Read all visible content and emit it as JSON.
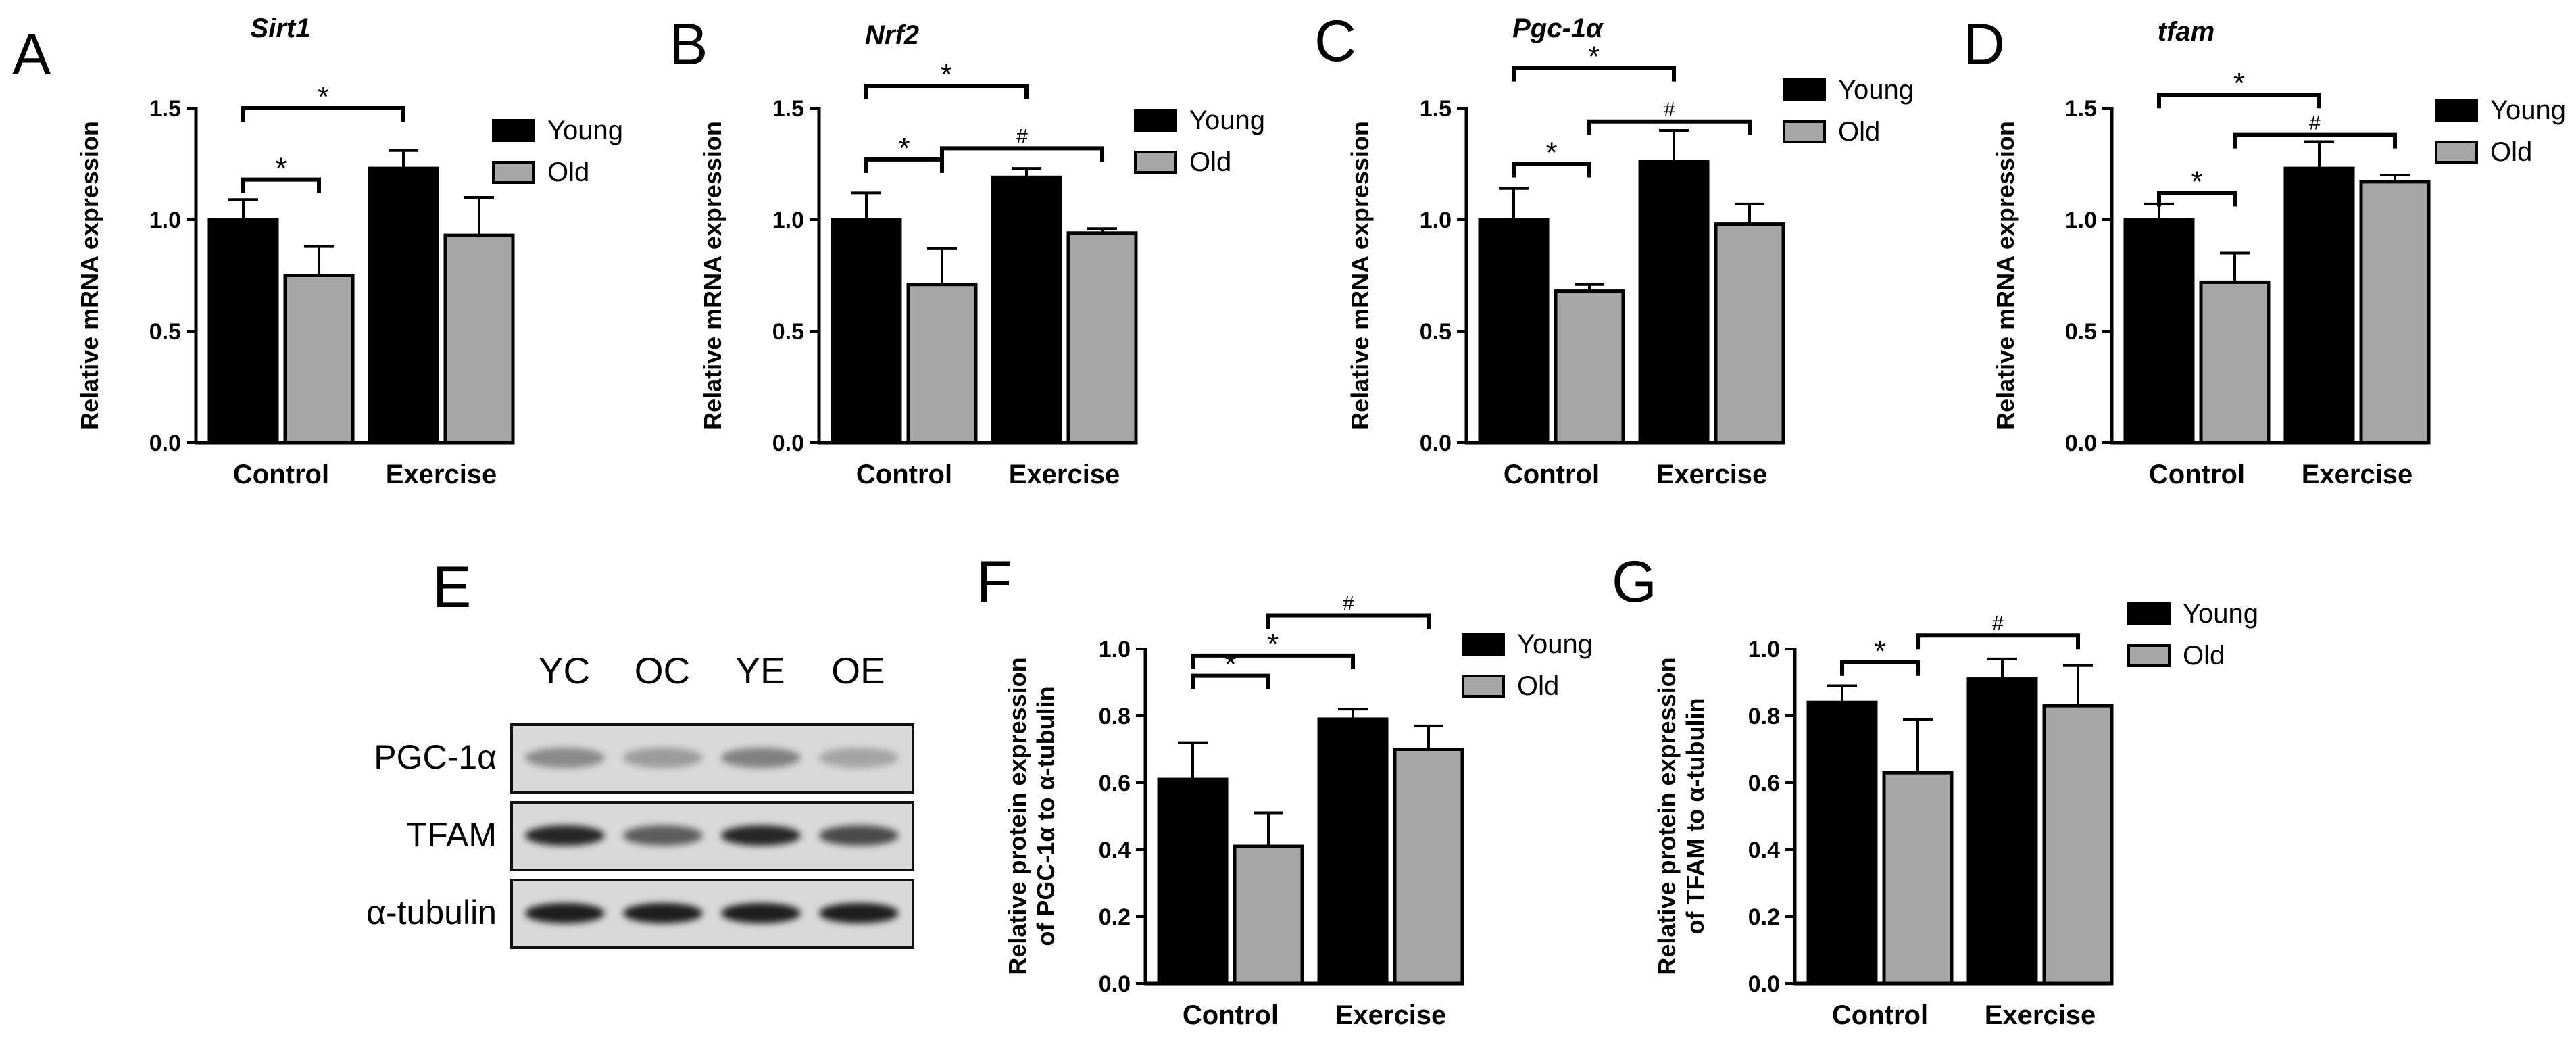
{
  "colors": {
    "young": "#000000",
    "old": "#a6a6a6",
    "axis": "#000000"
  },
  "western_blot": {
    "panel_letter": "E",
    "lanes": [
      "YC",
      "OC",
      "YE",
      "OE"
    ],
    "rows": [
      {
        "label": "PGC-1α",
        "band_intensity": [
          0.35,
          0.25,
          0.4,
          0.2
        ]
      },
      {
        "label": "TFAM",
        "band_intensity": [
          0.9,
          0.6,
          0.9,
          0.7
        ]
      },
      {
        "label": "α-tubulin",
        "band_intensity": [
          0.95,
          0.95,
          0.95,
          0.95
        ]
      }
    ]
  },
  "chart_data": [
    {
      "panel_letter": "A",
      "type": "bar",
      "title": "Sirt1",
      "title_italic": true,
      "ylabel": [
        "Relative mRNA expression"
      ],
      "ylim": [
        0,
        1.5
      ],
      "yticks": [
        "0.0",
        "0.5",
        "1.0",
        "1.5"
      ],
      "categories": [
        "Control",
        "Exercise"
      ],
      "series": [
        {
          "name": "Young",
          "values": [
            1.0,
            1.23
          ],
          "errors": [
            0.09,
            0.08
          ]
        },
        {
          "name": "Old",
          "values": [
            0.75,
            0.93
          ],
          "errors": [
            0.13,
            0.17
          ]
        }
      ],
      "legend_position": "top-right",
      "annotations": [
        {
          "label": "*",
          "from": [
            0,
            0
          ],
          "to": [
            0,
            1
          ],
          "y": 1.18
        },
        {
          "label": "*",
          "from": [
            0,
            0
          ],
          "to": [
            1,
            0
          ],
          "y": 1.5
        }
      ]
    },
    {
      "panel_letter": "B",
      "type": "bar",
      "title": "Nrf2",
      "title_italic": true,
      "ylabel": [
        "Relative mRNA expression"
      ],
      "ylim": [
        0,
        1.5
      ],
      "yticks": [
        "0.0",
        "0.5",
        "1.0",
        "1.5"
      ],
      "categories": [
        "Control",
        "Exercise"
      ],
      "series": [
        {
          "name": "Young",
          "values": [
            1.0,
            1.19
          ],
          "errors": [
            0.12,
            0.04
          ]
        },
        {
          "name": "Old",
          "values": [
            0.71,
            0.94
          ],
          "errors": [
            0.16,
            0.02
          ]
        }
      ],
      "legend_position": "top-right",
      "annotations": [
        {
          "label": "*",
          "from": [
            0,
            0
          ],
          "to": [
            0,
            1
          ],
          "y": 1.27
        },
        {
          "label": "*",
          "from": [
            0,
            0
          ],
          "to": [
            1,
            0
          ],
          "y": 1.6
        },
        {
          "label": "#",
          "from": [
            0,
            1
          ],
          "to": [
            1,
            1
          ],
          "y": 1.32
        }
      ]
    },
    {
      "panel_letter": "C",
      "type": "bar",
      "title": "Pgc-1α",
      "title_italic": true,
      "ylabel": [
        "Relative mRNA expression"
      ],
      "ylim": [
        0,
        1.5
      ],
      "yticks": [
        "0.0",
        "0.5",
        "1.0",
        "1.5"
      ],
      "categories": [
        "Control",
        "Exercise"
      ],
      "series": [
        {
          "name": "Young",
          "values": [
            1.0,
            1.26
          ],
          "errors": [
            0.14,
            0.14
          ]
        },
        {
          "name": "Old",
          "values": [
            0.68,
            0.98
          ],
          "errors": [
            0.03,
            0.09
          ]
        }
      ],
      "legend_position": "top-right",
      "annotations": [
        {
          "label": "*",
          "from": [
            0,
            0
          ],
          "to": [
            0,
            1
          ],
          "y": 1.25
        },
        {
          "label": "*",
          "from": [
            0,
            0
          ],
          "to": [
            1,
            0
          ],
          "y": 1.68
        },
        {
          "label": "#",
          "from": [
            0,
            1
          ],
          "to": [
            1,
            1
          ],
          "y": 1.44
        }
      ]
    },
    {
      "panel_letter": "D",
      "type": "bar",
      "title": "tfam",
      "title_italic": true,
      "ylabel": [
        "Relative mRNA expression"
      ],
      "ylim": [
        0,
        1.5
      ],
      "yticks": [
        "0.0",
        "0.5",
        "1.0",
        "1.5"
      ],
      "categories": [
        "Control",
        "Exercise"
      ],
      "series": [
        {
          "name": "Young",
          "values": [
            1.0,
            1.23
          ],
          "errors": [
            0.07,
            0.12
          ]
        },
        {
          "name": "Old",
          "values": [
            0.72,
            1.17
          ],
          "errors": [
            0.13,
            0.03
          ]
        }
      ],
      "legend_position": "top-right",
      "annotations": [
        {
          "label": "*",
          "from": [
            0,
            0
          ],
          "to": [
            0,
            1
          ],
          "y": 1.12
        },
        {
          "label": "*",
          "from": [
            0,
            0
          ],
          "to": [
            1,
            0
          ],
          "y": 1.56
        },
        {
          "label": "#",
          "from": [
            0,
            1
          ],
          "to": [
            1,
            1
          ],
          "y": 1.38
        }
      ]
    },
    {
      "panel_letter": "F",
      "type": "bar",
      "title": "",
      "title_italic": false,
      "ylabel": [
        "Relative protein expression",
        "of PGC-1α to α-tubulin"
      ],
      "ylim": [
        0,
        1.0
      ],
      "yticks": [
        "0.0",
        "0.2",
        "0.4",
        "0.6",
        "0.8",
        "1.0"
      ],
      "categories": [
        "Control",
        "Exercise"
      ],
      "series": [
        {
          "name": "Young",
          "values": [
            0.61,
            0.79
          ],
          "errors": [
            0.11,
            0.03
          ]
        },
        {
          "name": "Old",
          "values": [
            0.41,
            0.7
          ],
          "errors": [
            0.1,
            0.07
          ]
        }
      ],
      "legend_position": "top-right",
      "annotations": [
        {
          "label": "*",
          "from": [
            0,
            0
          ],
          "to": [
            0,
            1
          ],
          "y": 0.92
        },
        {
          "label": "*",
          "from": [
            0,
            0
          ],
          "to": [
            1,
            0
          ],
          "y": 0.98
        },
        {
          "label": "#",
          "from": [
            0,
            1
          ],
          "to": [
            1,
            1
          ],
          "y": 1.1
        }
      ]
    },
    {
      "panel_letter": "G",
      "type": "bar",
      "title": "",
      "title_italic": false,
      "ylabel": [
        "Relative protein expression",
        "of TFAM to α-tubulin"
      ],
      "ylim": [
        0,
        1.0
      ],
      "yticks": [
        "0.0",
        "0.2",
        "0.4",
        "0.6",
        "0.8",
        "1.0"
      ],
      "categories": [
        "Control",
        "Exercise"
      ],
      "series": [
        {
          "name": "Young",
          "values": [
            0.84,
            0.91
          ],
          "errors": [
            0.05,
            0.06
          ]
        },
        {
          "name": "Old",
          "values": [
            0.63,
            0.83
          ],
          "errors": [
            0.16,
            0.12
          ]
        }
      ],
      "legend_position": "top-right",
      "annotations": [
        {
          "label": "*",
          "from": [
            0,
            0
          ],
          "to": [
            0,
            1
          ],
          "y": 0.96
        },
        {
          "label": "#",
          "from": [
            0,
            1
          ],
          "to": [
            1,
            1
          ],
          "y": 1.04
        }
      ]
    }
  ]
}
